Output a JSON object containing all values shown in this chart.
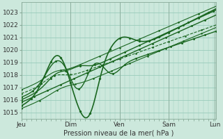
{
  "xlabel": "Pression niveau de la mer( hPa )",
  "bg_color": "#cce8dc",
  "plot_bg_color": "#cce8dc",
  "grid_color": "#99ccbb",
  "line_color": "#1a6620",
  "ylim": [
    1014.5,
    1023.8
  ],
  "yticks": [
    1015,
    1016,
    1017,
    1018,
    1019,
    1020,
    1021,
    1022,
    1023
  ],
  "day_labels": [
    "Jeu",
    "Dim",
    "Ven",
    "Sam",
    "Lun"
  ],
  "day_positions": [
    0,
    30,
    60,
    90,
    118
  ],
  "total_points": 120,
  "xlim_max": 119
}
